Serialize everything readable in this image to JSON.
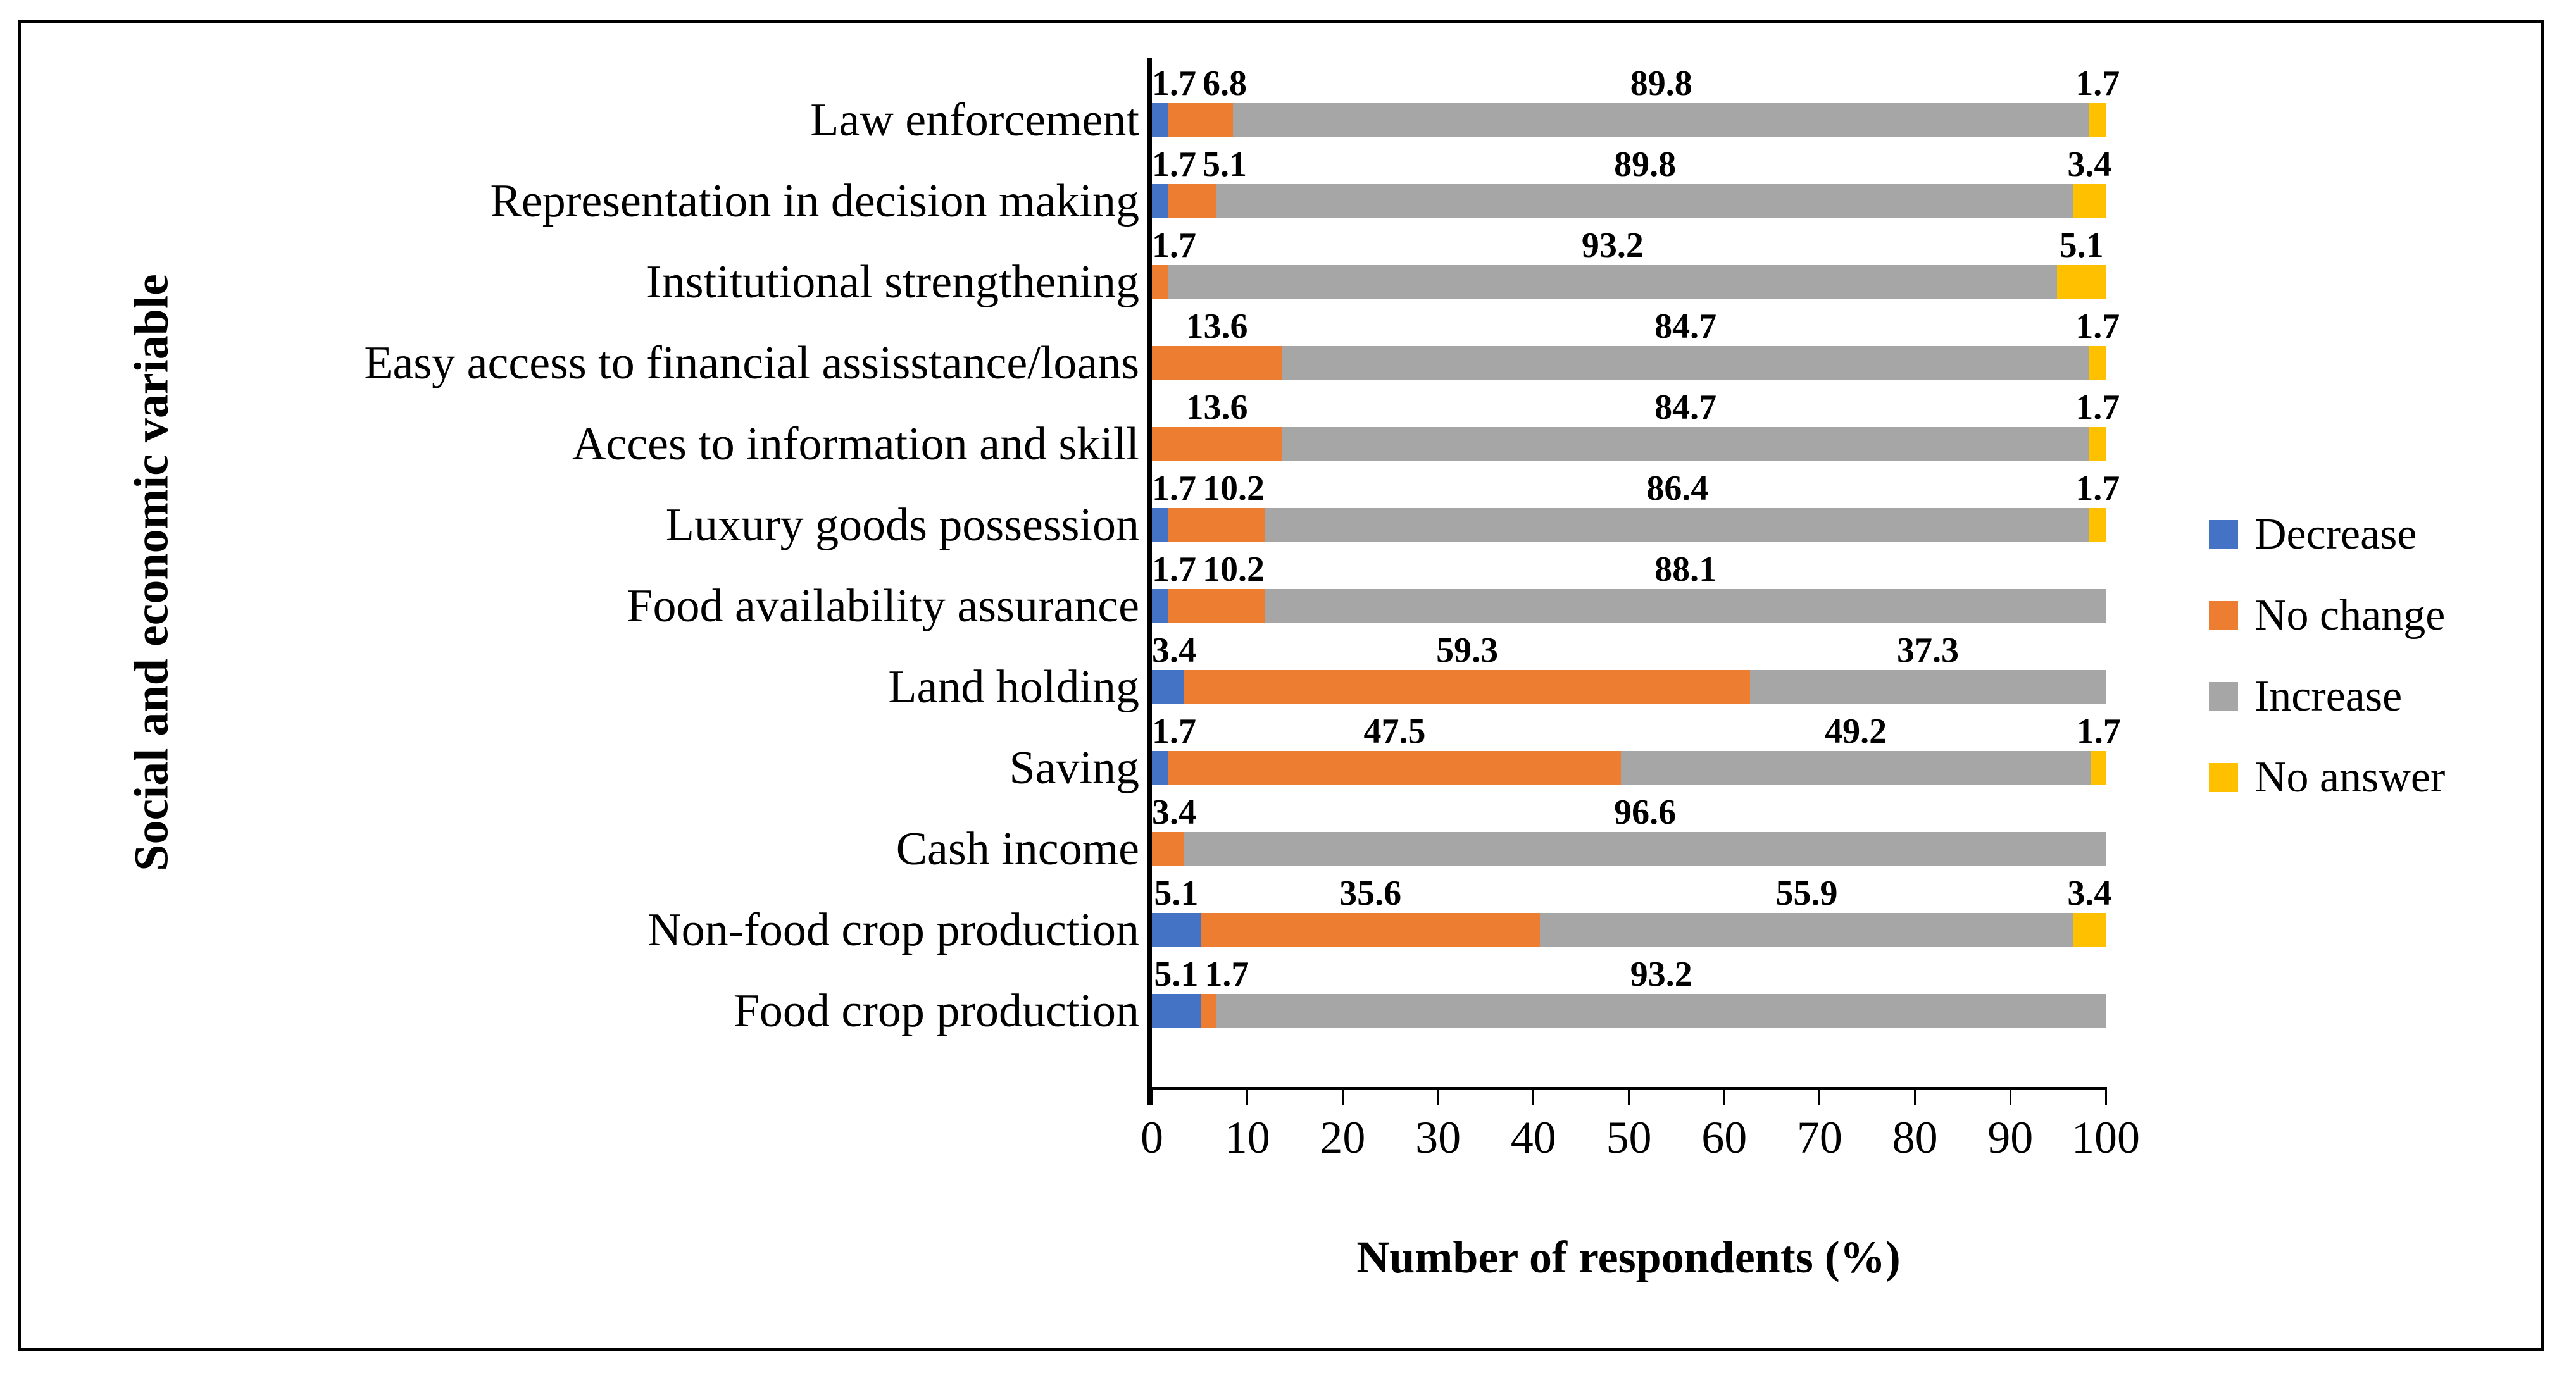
{
  "figure": {
    "background": "#ffffff",
    "border_color": "#000000"
  },
  "chart_data": {
    "type": "bar",
    "orientation": "horizontal",
    "stacked": true,
    "title": "",
    "xlabel": "Number of respondents (%)",
    "ylabel": "Social and economic variable",
    "xlim": [
      0,
      100
    ],
    "x_ticks": [
      "0",
      "10",
      "20",
      "30",
      "40",
      "50",
      "60",
      "70",
      "80",
      "90",
      "100"
    ],
    "grid": false,
    "data_labels": true,
    "legend_position": "right",
    "categories": [
      "Law enforcement",
      "Representation in decision making",
      "Institutional strengthening",
      "Easy access to financial assisstance/loans",
      "Acces to information and skill",
      "Luxury goods possession",
      "Food availability assurance",
      "Land holding",
      "Saving",
      "Cash income",
      "Non-food crop production",
      "Food crop production"
    ],
    "series": [
      {
        "name": "Decrease",
        "color": "#4472C4",
        "values": [
          1.7,
          1.7,
          0,
          0,
          0,
          1.7,
          1.7,
          3.4,
          1.7,
          0,
          5.1,
          5.1
        ]
      },
      {
        "name": "No change",
        "color": "#ED7D31",
        "values": [
          6.8,
          5.1,
          1.7,
          13.6,
          13.6,
          10.2,
          10.2,
          59.3,
          47.5,
          3.4,
          35.6,
          1.7
        ]
      },
      {
        "name": "Increase",
        "color": "#A6A6A6",
        "values": [
          89.8,
          89.8,
          93.2,
          84.7,
          84.7,
          86.4,
          88.1,
          37.3,
          49.2,
          96.6,
          55.9,
          93.2
        ]
      },
      {
        "name": "No answer",
        "color": "#FFC000",
        "values": [
          1.7,
          3.4,
          5.1,
          1.7,
          1.7,
          1.7,
          0,
          0,
          1.7,
          0,
          3.4,
          0
        ]
      }
    ]
  }
}
